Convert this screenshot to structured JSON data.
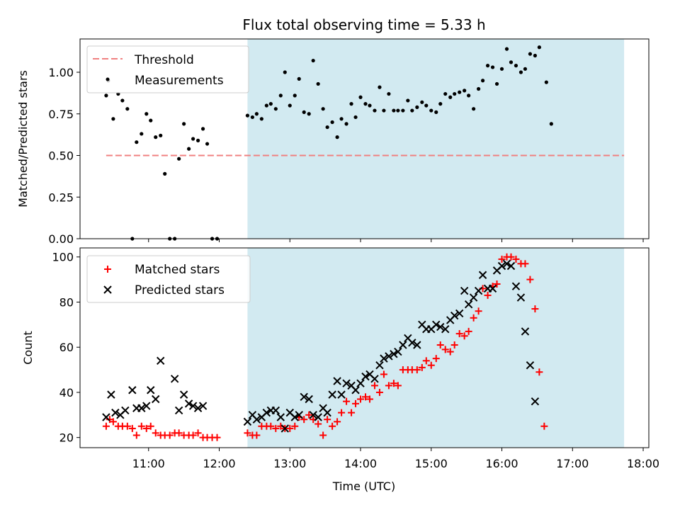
{
  "chart_data": {
    "type": "scatter",
    "title": "Flux total observing time = 5.33 h",
    "colors": {
      "measurement": "#000000",
      "threshold": "#f08080",
      "matched": "#ff0000",
      "predicted": "#000000",
      "shade": "#add8e6"
    },
    "x_axis": {
      "label": "Time (UTC)",
      "range_hours": [
        10.03,
        18.08
      ],
      "ticks": [
        {
          "value": 11,
          "label": "11:00"
        },
        {
          "value": 12,
          "label": "12:00"
        },
        {
          "value": 13,
          "label": "13:00"
        },
        {
          "value": 14,
          "label": "14:00"
        },
        {
          "value": 15,
          "label": "15:00"
        },
        {
          "value": 16,
          "label": "16:00"
        },
        {
          "value": 17,
          "label": "17:00"
        },
        {
          "value": 18,
          "label": "18:00"
        }
      ]
    },
    "shaded_interval_hours": [
      12.4,
      17.73
    ],
    "top_panel": {
      "ylabel": "Matched/Predicted stars",
      "ylim": [
        0,
        1.2
      ],
      "yticks": [
        "0.00",
        "0.25",
        "0.50",
        "0.75",
        "1.00"
      ],
      "threshold": {
        "name": "Threshold",
        "y": 0.5,
        "x_range_hours": [
          10.4,
          17.73
        ]
      },
      "measurements": {
        "name": "Measurements",
        "points": [
          [
            10.4,
            0.86
          ],
          [
            10.43,
            0.95
          ],
          [
            10.5,
            0.72
          ],
          [
            10.57,
            0.87
          ],
          [
            10.63,
            0.83
          ],
          [
            10.7,
            0.78
          ],
          [
            10.77,
            0.0
          ],
          [
            10.83,
            0.58
          ],
          [
            10.9,
            0.63
          ],
          [
            10.97,
            0.75
          ],
          [
            11.03,
            0.71
          ],
          [
            11.1,
            0.61
          ],
          [
            11.17,
            0.62
          ],
          [
            11.23,
            0.39
          ],
          [
            11.3,
            0.0
          ],
          [
            11.37,
            0.0
          ],
          [
            11.43,
            0.48
          ],
          [
            11.5,
            0.69
          ],
          [
            11.57,
            0.54
          ],
          [
            11.63,
            0.6
          ],
          [
            11.7,
            0.59
          ],
          [
            11.77,
            0.66
          ],
          [
            11.83,
            0.57
          ],
          [
            11.9,
            0.0
          ],
          [
            11.97,
            0.0
          ],
          [
            12.4,
            0.74
          ],
          [
            12.47,
            0.73
          ],
          [
            12.53,
            0.75
          ],
          [
            12.6,
            0.72
          ],
          [
            12.67,
            0.8
          ],
          [
            12.73,
            0.81
          ],
          [
            12.8,
            0.78
          ],
          [
            12.87,
            0.86
          ],
          [
            12.93,
            1.0
          ],
          [
            13.0,
            0.8
          ],
          [
            13.07,
            0.86
          ],
          [
            13.13,
            0.96
          ],
          [
            13.2,
            0.76
          ],
          [
            13.27,
            0.75
          ],
          [
            13.33,
            1.07
          ],
          [
            13.4,
            0.93
          ],
          [
            13.47,
            0.78
          ],
          [
            13.53,
            0.67
          ],
          [
            13.6,
            0.7
          ],
          [
            13.67,
            0.61
          ],
          [
            13.73,
            0.72
          ],
          [
            13.8,
            0.69
          ],
          [
            13.87,
            0.81
          ],
          [
            13.93,
            0.73
          ],
          [
            14.0,
            0.85
          ],
          [
            14.07,
            0.81
          ],
          [
            14.13,
            0.8
          ],
          [
            14.2,
            0.77
          ],
          [
            14.27,
            0.91
          ],
          [
            14.33,
            0.77
          ],
          [
            14.4,
            0.87
          ],
          [
            14.47,
            0.77
          ],
          [
            14.53,
            0.77
          ],
          [
            14.6,
            0.77
          ],
          [
            14.67,
            0.83
          ],
          [
            14.73,
            0.77
          ],
          [
            14.8,
            0.79
          ],
          [
            14.87,
            0.82
          ],
          [
            14.93,
            0.8
          ],
          [
            15.0,
            0.77
          ],
          [
            15.07,
            0.76
          ],
          [
            15.13,
            0.81
          ],
          [
            15.2,
            0.87
          ],
          [
            15.27,
            0.85
          ],
          [
            15.33,
            0.87
          ],
          [
            15.4,
            0.88
          ],
          [
            15.47,
            0.89
          ],
          [
            15.53,
            0.86
          ],
          [
            15.6,
            0.78
          ],
          [
            15.67,
            0.9
          ],
          [
            15.73,
            0.95
          ],
          [
            15.8,
            1.04
          ],
          [
            15.87,
            1.03
          ],
          [
            15.93,
            0.93
          ],
          [
            16.0,
            1.02
          ],
          [
            16.07,
            1.14
          ],
          [
            16.13,
            1.06
          ],
          [
            16.2,
            1.04
          ],
          [
            16.27,
            1.0
          ],
          [
            16.33,
            1.02
          ],
          [
            16.4,
            1.11
          ],
          [
            16.47,
            1.1
          ],
          [
            16.53,
            1.15
          ],
          [
            16.63,
            0.94
          ],
          [
            16.7,
            0.69
          ]
        ]
      }
    },
    "bottom_panel": {
      "ylabel": "Count",
      "ylim": [
        15.5,
        104
      ],
      "yticks": [
        "20",
        "40",
        "60",
        "80",
        "100"
      ],
      "series": [
        {
          "name": "Matched stars",
          "marker": "+",
          "points": [
            [
              10.4,
              25
            ],
            [
              10.45,
              28
            ],
            [
              10.5,
              27
            ],
            [
              10.57,
              25
            ],
            [
              10.63,
              25
            ],
            [
              10.7,
              25
            ],
            [
              10.77,
              24
            ],
            [
              10.83,
              21
            ],
            [
              10.9,
              25
            ],
            [
              10.97,
              24
            ],
            [
              11.03,
              25
            ],
            [
              11.1,
              22
            ],
            [
              11.17,
              21
            ],
            [
              11.23,
              21
            ],
            [
              11.3,
              21
            ],
            [
              11.37,
              22
            ],
            [
              11.43,
              22
            ],
            [
              11.5,
              21
            ],
            [
              11.57,
              21
            ],
            [
              11.63,
              21
            ],
            [
              11.7,
              22
            ],
            [
              11.77,
              20
            ],
            [
              11.83,
              20
            ],
            [
              11.9,
              20
            ],
            [
              11.97,
              20
            ],
            [
              12.4,
              22
            ],
            [
              12.47,
              21
            ],
            [
              12.53,
              21
            ],
            [
              12.6,
              25
            ],
            [
              12.67,
              25
            ],
            [
              12.73,
              25
            ],
            [
              12.8,
              24
            ],
            [
              12.87,
              25
            ],
            [
              12.93,
              24
            ],
            [
              13.0,
              24
            ],
            [
              13.07,
              25
            ],
            [
              13.13,
              29
            ],
            [
              13.2,
              28
            ],
            [
              13.27,
              30
            ],
            [
              13.33,
              28
            ],
            [
              13.4,
              26
            ],
            [
              13.47,
              21
            ],
            [
              13.53,
              28
            ],
            [
              13.6,
              25
            ],
            [
              13.67,
              27
            ],
            [
              13.73,
              31
            ],
            [
              13.8,
              36
            ],
            [
              13.87,
              31
            ],
            [
              13.93,
              35
            ],
            [
              14.0,
              37
            ],
            [
              14.07,
              38
            ],
            [
              14.13,
              37
            ],
            [
              14.2,
              43
            ],
            [
              14.27,
              40
            ],
            [
              14.33,
              48
            ],
            [
              14.4,
              43
            ],
            [
              14.47,
              44
            ],
            [
              14.53,
              43
            ],
            [
              14.6,
              50
            ],
            [
              14.67,
              50
            ],
            [
              14.73,
              50
            ],
            [
              14.8,
              50
            ],
            [
              14.87,
              51
            ],
            [
              14.93,
              54
            ],
            [
              15.0,
              52
            ],
            [
              15.07,
              55
            ],
            [
              15.13,
              61
            ],
            [
              15.2,
              59
            ],
            [
              15.27,
              58
            ],
            [
              15.33,
              61
            ],
            [
              15.4,
              66
            ],
            [
              15.47,
              65
            ],
            [
              15.53,
              67
            ],
            [
              15.6,
              73
            ],
            [
              15.67,
              76
            ],
            [
              15.73,
              86
            ],
            [
              15.8,
              83
            ],
            [
              15.87,
              87
            ],
            [
              15.93,
              88
            ],
            [
              16.0,
              99
            ],
            [
              16.07,
              100
            ],
            [
              16.13,
              100
            ],
            [
              16.2,
              99
            ],
            [
              16.27,
              97
            ],
            [
              16.33,
              97
            ],
            [
              16.4,
              90
            ],
            [
              16.47,
              77
            ],
            [
              16.53,
              49
            ],
            [
              16.6,
              25
            ]
          ]
        },
        {
          "name": "Predicted stars",
          "marker": "x",
          "points": [
            [
              10.4,
              29
            ],
            [
              10.47,
              39
            ],
            [
              10.53,
              31
            ],
            [
              10.6,
              30
            ],
            [
              10.67,
              32
            ],
            [
              10.77,
              41
            ],
            [
              10.83,
              33
            ],
            [
              10.9,
              33
            ],
            [
              10.97,
              34
            ],
            [
              11.03,
              41
            ],
            [
              11.1,
              37
            ],
            [
              11.17,
              54
            ],
            [
              11.37,
              46
            ],
            [
              11.43,
              32
            ],
            [
              11.5,
              39
            ],
            [
              11.57,
              35
            ],
            [
              11.63,
              34
            ],
            [
              11.7,
              33
            ],
            [
              11.77,
              34
            ],
            [
              12.4,
              27
            ],
            [
              12.47,
              30
            ],
            [
              12.53,
              28
            ],
            [
              12.6,
              29
            ],
            [
              12.67,
              31
            ],
            [
              12.73,
              32
            ],
            [
              12.8,
              32
            ],
            [
              12.87,
              29
            ],
            [
              12.93,
              24
            ],
            [
              13.0,
              31
            ],
            [
              13.07,
              29
            ],
            [
              13.13,
              30
            ],
            [
              13.2,
              38
            ],
            [
              13.27,
              37
            ],
            [
              13.33,
              30
            ],
            [
              13.4,
              29
            ],
            [
              13.47,
              33
            ],
            [
              13.53,
              31
            ],
            [
              13.6,
              39
            ],
            [
              13.67,
              45
            ],
            [
              13.73,
              39
            ],
            [
              13.8,
              44
            ],
            [
              13.87,
              43
            ],
            [
              13.93,
              41
            ],
            [
              14.0,
              44
            ],
            [
              14.07,
              47
            ],
            [
              14.13,
              48
            ],
            [
              14.2,
              46
            ],
            [
              14.27,
              52
            ],
            [
              14.33,
              55
            ],
            [
              14.4,
              56
            ],
            [
              14.47,
              57
            ],
            [
              14.53,
              58
            ],
            [
              14.6,
              61
            ],
            [
              14.67,
              64
            ],
            [
              14.73,
              62
            ],
            [
              14.8,
              61
            ],
            [
              14.87,
              70
            ],
            [
              14.93,
              68
            ],
            [
              15.0,
              68
            ],
            [
              15.07,
              70
            ],
            [
              15.13,
              69
            ],
            [
              15.2,
              68
            ],
            [
              15.27,
              72
            ],
            [
              15.33,
              74
            ],
            [
              15.4,
              75
            ],
            [
              15.47,
              85
            ],
            [
              15.53,
              79
            ],
            [
              15.6,
              82
            ],
            [
              15.67,
              85
            ],
            [
              15.73,
              92
            ],
            [
              15.8,
              86
            ],
            [
              15.87,
              86
            ],
            [
              15.93,
              94
            ],
            [
              16.0,
              96
            ],
            [
              16.07,
              97
            ],
            [
              16.13,
              96
            ],
            [
              16.2,
              87
            ],
            [
              16.27,
              82
            ],
            [
              16.33,
              67
            ],
            [
              16.4,
              52
            ],
            [
              16.47,
              36
            ]
          ]
        }
      ]
    }
  }
}
